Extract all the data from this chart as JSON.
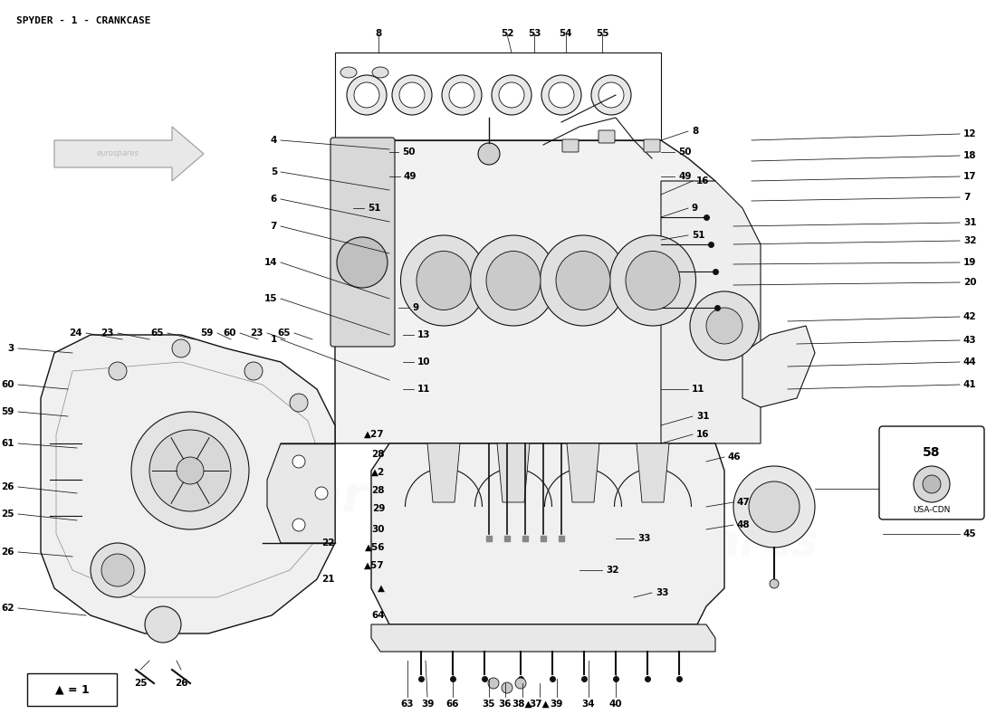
{
  "title": "SPYDER - 1 - CRANKCASE",
  "title_fontsize": 8,
  "background_color": "#ffffff",
  "watermark_text": "eurospares",
  "arrow_legend": "▲ = 1",
  "usa_cdn_label": "USA-CDN",
  "part_number_label": "58",
  "line_color": "#111111",
  "label_fontsize": 7.5
}
